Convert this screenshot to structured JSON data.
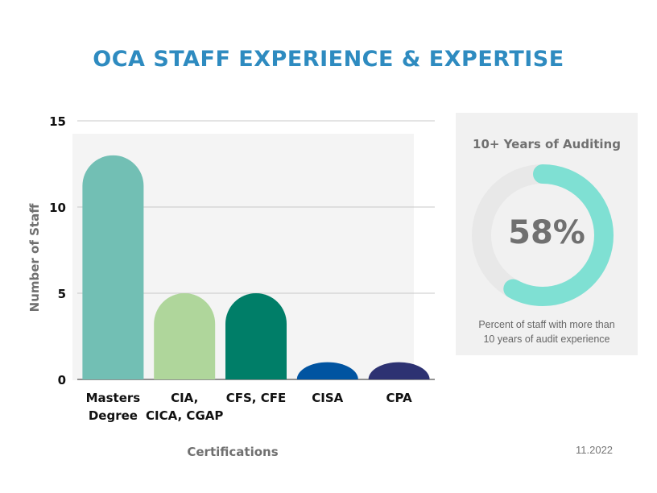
{
  "header": {
    "title": "OCA STAFF EXPERIENCE & EXPERTISE"
  },
  "chart_data": {
    "type": "bar",
    "categories": [
      [
        "Masters",
        "Degree"
      ],
      [
        "CIA,",
        "CICA, CGAP"
      ],
      [
        "CFS, CFE"
      ],
      [
        "CISA"
      ],
      [
        "CPA"
      ]
    ],
    "values": [
      13,
      5,
      5,
      1,
      1
    ],
    "colors": [
      "#72bfb4",
      "#afd69b",
      "#007e68",
      "#0154a1",
      "#2d3272"
    ],
    "ylabel": "Number of Staff",
    "xlabel": "Certifications",
    "ylim": [
      0,
      15
    ],
    "yticks": [
      0,
      5,
      10,
      15
    ],
    "grid": true
  },
  "kpi": {
    "title": "10+ Years of Auditing",
    "value_label": "58%",
    "fraction": 0.58,
    "caption_line1": "Percent of staff with more than",
    "caption_line2": "10 years of audit experience",
    "ring_color": "#7fe0d3",
    "track_color": "#e8e8e8"
  },
  "footer": {
    "date": "11.2022"
  }
}
